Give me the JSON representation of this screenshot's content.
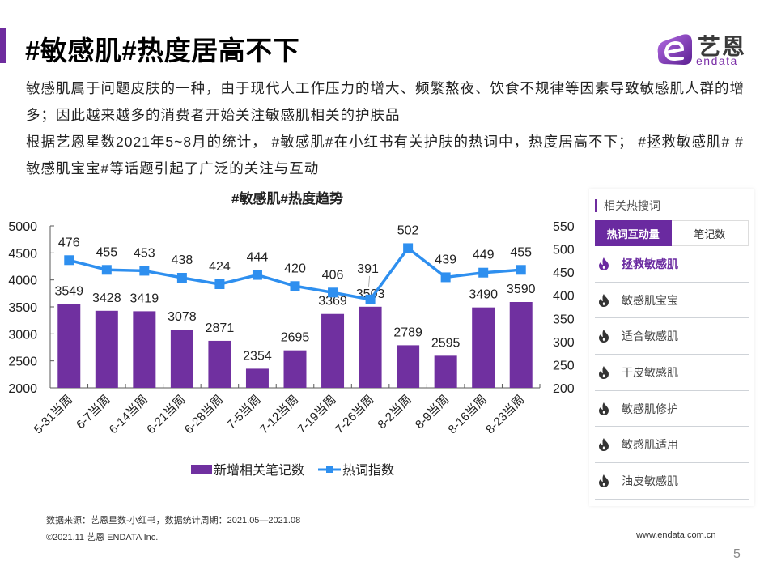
{
  "header": {
    "title": "#敏感肌#热度居高不下",
    "accent_color": "#6E2C9E"
  },
  "logo": {
    "cn": "艺恩",
    "en": "endata"
  },
  "body": {
    "paragraphs": [
      "敏感肌属于问题皮肤的一种，由于现代人工作压力的增大、频繁熬夜、饮食不规律等因素导致敏感肌人群的增多；因此越来越多的消费者开始关注敏感肌相关的护肤品",
      "根据艺恩星数2021年5~8月的统计， #敏感肌#在小红书有关护肤的热词中，热度居高不下； #拯救敏感肌# #敏感肌宝宝#等话题引起了广泛的关注与互动"
    ]
  },
  "chart_data": {
    "type": "bar",
    "title": "#敏感肌#热度趋势",
    "categories": [
      "5-31当周",
      "6-7当周",
      "6-14当周",
      "6-21当周",
      "6-28当周",
      "7-5当周",
      "7-12当周",
      "7-19当周",
      "7-26当周",
      "8-2当周",
      "8-9当周",
      "8-16当周",
      "8-23当周"
    ],
    "series": [
      {
        "name": "新增相关笔记数",
        "type": "bar",
        "axis": "left",
        "color": "#7030A0",
        "values": [
          3549,
          3428,
          3419,
          3078,
          2871,
          2354,
          2695,
          3369,
          3503,
          2789,
          2595,
          3490,
          3590
        ]
      },
      {
        "name": "热词指数",
        "type": "line",
        "axis": "right",
        "color": "#2E8FEF",
        "values": [
          476,
          455,
          453,
          438,
          424,
          444,
          420,
          406,
          391,
          502,
          439,
          449,
          455
        ]
      }
    ],
    "y_left": {
      "min": 2000,
      "max": 5000,
      "ticks": [
        2000,
        2500,
        3000,
        3500,
        4000,
        4500,
        5000
      ]
    },
    "y_right": {
      "min": 200,
      "max": 550,
      "ticks": [
        200,
        250,
        300,
        350,
        400,
        450,
        500,
        550
      ]
    },
    "xlabel": "",
    "ylabel": "",
    "legend": "bottom",
    "grid": false,
    "data_labels": true
  },
  "side_panel": {
    "title": "相关热搜词",
    "tabs": [
      {
        "label": "热词互动量",
        "active": true
      },
      {
        "label": "笔记数",
        "active": false
      }
    ],
    "items": [
      {
        "label": "拯救敏感肌",
        "icon": "flame-icon",
        "highlighted": true
      },
      {
        "label": "敏感肌宝宝",
        "icon": "flame-icon",
        "highlighted": false
      },
      {
        "label": "适合敏感肌",
        "icon": "flame-icon",
        "highlighted": false
      },
      {
        "label": "干皮敏感肌",
        "icon": "flame-icon",
        "highlighted": false
      },
      {
        "label": "敏感肌修护",
        "icon": "flame-icon",
        "highlighted": false
      },
      {
        "label": "敏感肌适用",
        "icon": "flame-icon",
        "highlighted": false
      },
      {
        "label": "油皮敏感肌",
        "icon": "flame-icon",
        "highlighted": false
      }
    ],
    "highlight_color": "#6A2AA0",
    "icon_color": "#333333"
  },
  "footer": {
    "source": "数据来源：艺恩星数-小红书，数据统计周期：2021.05—2021.08",
    "copyright": "©2021.11 艺恩 ENDATA Inc.",
    "url": "www.endata.com.cn",
    "page_number": "5"
  }
}
